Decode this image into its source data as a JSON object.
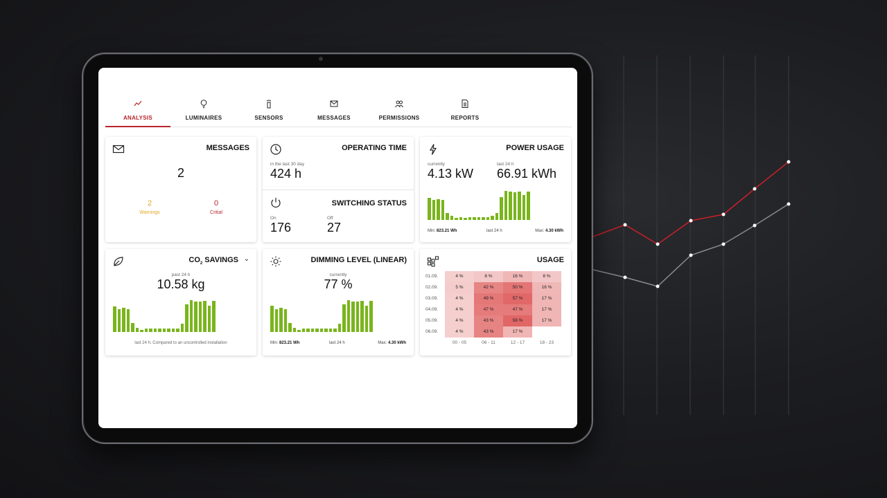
{
  "nav": {
    "tabs": [
      {
        "label": "ANALYSIS",
        "icon": "trend-icon",
        "active": true
      },
      {
        "label": "LUMINAIRES",
        "icon": "lightbulb-icon"
      },
      {
        "label": "SENSORS",
        "icon": "sensor-icon"
      },
      {
        "label": "MESSAGES",
        "icon": "envelope-icon"
      },
      {
        "label": "PERMISSIONS",
        "icon": "users-icon"
      },
      {
        "label": "REPORTS",
        "icon": "document-icon"
      }
    ]
  },
  "messages": {
    "title": "MESSAGES",
    "count": "2",
    "warnings_value": "2",
    "warnings_label": "Warnings",
    "critical_value": "0",
    "critical_label": "Critial"
  },
  "operating": {
    "title": "OPERATING TIME",
    "caption": "in the last 30 day",
    "value": "424 h"
  },
  "switching": {
    "title": "SWITCHING STATUS",
    "on_label": "On",
    "on_value": "176",
    "off_label": "Off",
    "off_value": "27"
  },
  "power": {
    "title": "POWER USAGE",
    "current_label": "currently",
    "current_value": "4.13 kW",
    "day_label": "last 24 h",
    "day_value": "66.91 kWh",
    "min_label": "Min:",
    "min_value": "823.21 Wh",
    "mid_label": "last 24 h",
    "max_label": "Max:",
    "max_value": "4.30 kWh",
    "bars": [
      0.7,
      0.62,
      0.66,
      0.62,
      0.22,
      0.12,
      0.06,
      0.08,
      0.06,
      0.08,
      0.08,
      0.08,
      0.08,
      0.08,
      0.12,
      0.22,
      0.72,
      0.92,
      0.9,
      0.88,
      0.9,
      0.78,
      0.9
    ]
  },
  "co2": {
    "title_pre": "CO",
    "title_sub": "2",
    "title_post": " SAVINGS",
    "caption": "past 24 h",
    "value": "10.58 kg",
    "footer": "last 24 h. Compared to an uncontrolled installation",
    "bars": [
      0.8,
      0.72,
      0.75,
      0.72,
      0.28,
      0.14,
      0.06,
      0.1,
      0.1,
      0.1,
      0.1,
      0.1,
      0.1,
      0.1,
      0.1,
      0.26,
      0.88,
      1.0,
      0.96,
      0.96,
      0.98,
      0.82,
      0.98
    ]
  },
  "dimming": {
    "title": "DIMMING LEVEL (LINEAR)",
    "caption": "currently",
    "value": "77 %",
    "min_label": "Min:",
    "min_value": "823.21 Wh",
    "mid_label": "last 24 h",
    "max_label": "Max:",
    "max_value": "4.30 kWh",
    "bars": [
      0.82,
      0.72,
      0.75,
      0.72,
      0.28,
      0.14,
      0.06,
      0.1,
      0.1,
      0.1,
      0.1,
      0.1,
      0.1,
      0.1,
      0.1,
      0.26,
      0.88,
      1.0,
      0.96,
      0.96,
      0.98,
      0.82,
      0.98
    ]
  },
  "usage": {
    "title": "USAGE",
    "days": [
      "01.09.",
      "02.09.",
      "03.09.",
      "04.09.",
      "05.09.",
      "06.09."
    ],
    "columns": [
      "00 - 05",
      "06 - 11",
      "12 - 17",
      "18 - 23"
    ],
    "cells": [
      [
        "4 %",
        "8 %",
        "16 %",
        "8 %"
      ],
      [
        "5 %",
        "42 %",
        "50 %",
        "16 %"
      ],
      [
        "4 %",
        "49 %",
        "57 %",
        "17 %"
      ],
      [
        "4 %",
        "47 %",
        "47 %",
        "17 %"
      ],
      [
        "4 %",
        "43 %",
        "58 %",
        "17 %"
      ],
      [
        "4 %",
        "43 %",
        "17 %",
        ""
      ]
    ]
  },
  "colors": {
    "accent": "#b8252b",
    "bar": "#79b51c",
    "warning": "#e0a822",
    "critical": "#b8252b"
  }
}
